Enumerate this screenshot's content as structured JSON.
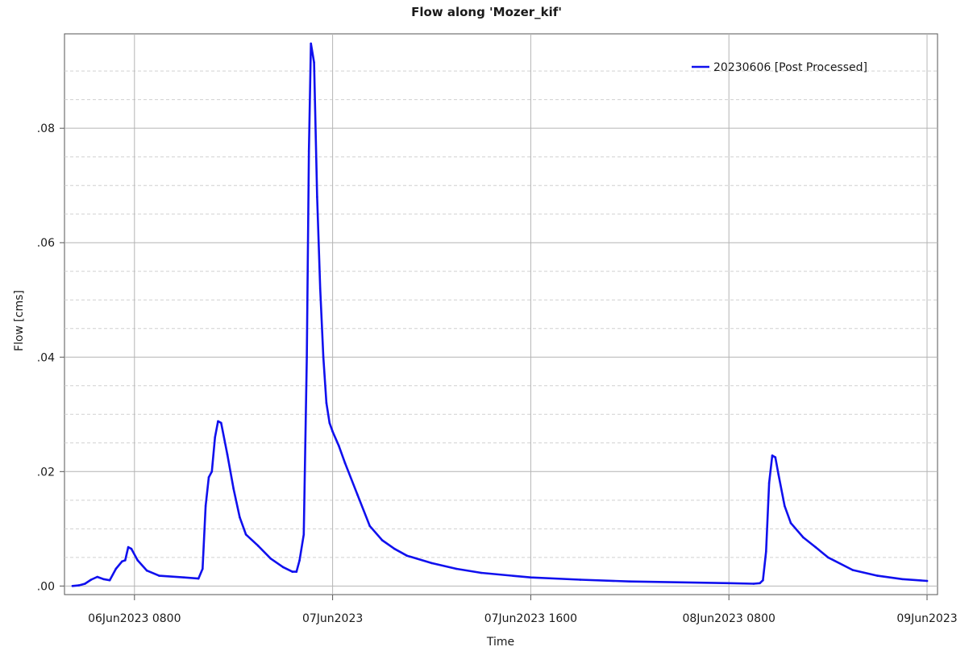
{
  "chart_data": {
    "type": "line",
    "title": "Flow along 'Mozer_kif'",
    "xlabel": "Time",
    "ylabel": "Flow [cms]",
    "x_axis": {
      "start": "06Jun2023 0300",
      "end": "09Jun2023 0000",
      "ticks": [
        {
          "time": "06Jun2023 0800",
          "label": "06Jun2023 0800"
        },
        {
          "time": "07Jun2023 0000",
          "label": "07Jun2023"
        },
        {
          "time": "07Jun2023 1600",
          "label": "07Jun2023 1600"
        },
        {
          "time": "08Jun2023 0800",
          "label": "08Jun2023 0800"
        },
        {
          "time": "09Jun2023 0000",
          "label": "09Jun2023"
        }
      ]
    },
    "y_axis": {
      "ylim": [
        -0.0015,
        0.0965
      ],
      "ticks": [
        {
          "value": 0.0,
          "label": ".00"
        },
        {
          "value": 0.02,
          "label": ".02"
        },
        {
          "value": 0.04,
          "label": ".04"
        },
        {
          "value": 0.06,
          "label": ".06"
        },
        {
          "value": 0.08,
          "label": ".08"
        }
      ],
      "minor_grid": [
        0.005,
        0.01,
        0.015,
        0.025,
        0.03,
        0.035,
        0.045,
        0.05,
        0.055,
        0.065,
        0.07,
        0.075,
        0.085,
        0.09
      ]
    },
    "grid": true,
    "legend": {
      "position": "top-right"
    },
    "series": [
      {
        "name": "20230606 [Post Processed]",
        "color": "#1010ee",
        "points": [
          [
            "06Jun2023 0300",
            0.0
          ],
          [
            "06Jun2023 0330",
            0.0001
          ],
          [
            "06Jun2023 0400",
            0.0004
          ],
          [
            "06Jun2023 0430",
            0.0011
          ],
          [
            "06Jun2023 0500",
            0.0016
          ],
          [
            "06Jun2023 0530",
            0.0012
          ],
          [
            "06Jun2023 0600",
            0.001
          ],
          [
            "06Jun2023 0630",
            0.003
          ],
          [
            "06Jun2023 0700",
            0.0043
          ],
          [
            "06Jun2023 0715",
            0.0045
          ],
          [
            "06Jun2023 0730",
            0.0068
          ],
          [
            "06Jun2023 0745",
            0.0065
          ],
          [
            "06Jun2023 0815",
            0.0045
          ],
          [
            "06Jun2023 0900",
            0.0027
          ],
          [
            "06Jun2023 1000",
            0.0018
          ],
          [
            "06Jun2023 1200",
            0.0015
          ],
          [
            "06Jun2023 1310",
            0.0013
          ],
          [
            "06Jun2023 1330",
            0.003
          ],
          [
            "06Jun2023 1345",
            0.014
          ],
          [
            "06Jun2023 1400",
            0.019
          ],
          [
            "06Jun2023 1415",
            0.02
          ],
          [
            "06Jun2023 1430",
            0.026
          ],
          [
            "06Jun2023 1445",
            0.0288
          ],
          [
            "06Jun2023 1500",
            0.0285
          ],
          [
            "06Jun2023 1530",
            0.023
          ],
          [
            "06Jun2023 1600",
            0.017
          ],
          [
            "06Jun2023 1630",
            0.012
          ],
          [
            "06Jun2023 1700",
            0.009
          ],
          [
            "06Jun2023 1800",
            0.007
          ],
          [
            "06Jun2023 1900",
            0.0048
          ],
          [
            "06Jun2023 2000",
            0.0033
          ],
          [
            "06Jun2023 2045",
            0.0025
          ],
          [
            "06Jun2023 2105",
            0.0025
          ],
          [
            "06Jun2023 2120",
            0.0045
          ],
          [
            "06Jun2023 2140",
            0.009
          ],
          [
            "06Jun2023 2155",
            0.04
          ],
          [
            "06Jun2023 2205",
            0.076
          ],
          [
            "06Jun2023 2215",
            0.0948
          ],
          [
            "06Jun2023 2230",
            0.0915
          ],
          [
            "06Jun2023 2245",
            0.068
          ],
          [
            "06Jun2023 2300",
            0.052
          ],
          [
            "06Jun2023 2315",
            0.04
          ],
          [
            "06Jun2023 2330",
            0.032
          ],
          [
            "06Jun2023 2345",
            0.0285
          ],
          [
            "07Jun2023 0000",
            0.027
          ],
          [
            "07Jun2023 0030",
            0.0245
          ],
          [
            "07Jun2023 0100",
            0.0215
          ],
          [
            "07Jun2023 0200",
            0.016
          ],
          [
            "07Jun2023 0300",
            0.0105
          ],
          [
            "07Jun2023 0400",
            0.008
          ],
          [
            "07Jun2023 0500",
            0.0065
          ],
          [
            "07Jun2023 0600",
            0.0053
          ],
          [
            "07Jun2023 0800",
            0.004
          ],
          [
            "07Jun2023 1000",
            0.003
          ],
          [
            "07Jun2023 1200",
            0.0023
          ],
          [
            "07Jun2023 1600",
            0.0015
          ],
          [
            "07Jun2023 2000",
            0.0011
          ],
          [
            "08Jun2023 0000",
            0.0008
          ],
          [
            "08Jun2023 0800",
            0.0005
          ],
          [
            "08Jun2023 1000",
            0.0004
          ],
          [
            "08Jun2023 1030",
            0.0005
          ],
          [
            "08Jun2023 1045",
            0.001
          ],
          [
            "08Jun2023 1100",
            0.006
          ],
          [
            "08Jun2023 1115",
            0.018
          ],
          [
            "08Jun2023 1130",
            0.0228
          ],
          [
            "08Jun2023 1145",
            0.0225
          ],
          [
            "08Jun2023 1200",
            0.0195
          ],
          [
            "08Jun2023 1230",
            0.014
          ],
          [
            "08Jun2023 1300",
            0.011
          ],
          [
            "08Jun2023 1400",
            0.0085
          ],
          [
            "08Jun2023 1500",
            0.0068
          ],
          [
            "08Jun2023 1600",
            0.005
          ],
          [
            "08Jun2023 1800",
            0.0028
          ],
          [
            "08Jun2023 2000",
            0.0018
          ],
          [
            "08Jun2023 2200",
            0.0012
          ],
          [
            "09Jun2023 0000",
            0.0009
          ]
        ]
      }
    ]
  }
}
